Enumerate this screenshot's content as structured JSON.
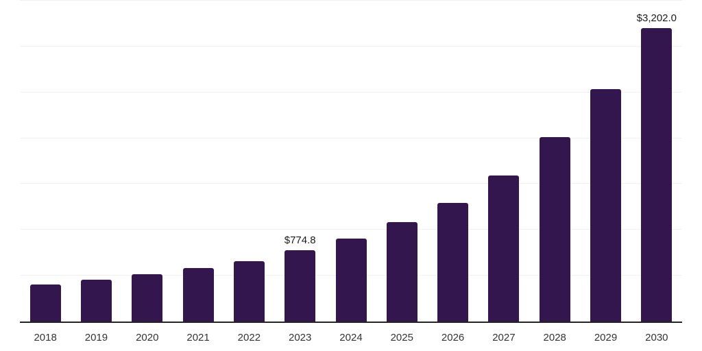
{
  "chart_data": {
    "type": "bar",
    "title": "",
    "xlabel": "",
    "ylabel": "",
    "categories": [
      "2018",
      "2019",
      "2020",
      "2021",
      "2022",
      "2023",
      "2024",
      "2025",
      "2026",
      "2027",
      "2028",
      "2029",
      "2030"
    ],
    "values": [
      405,
      456,
      517,
      580,
      660,
      774.8,
      905,
      1083,
      1292,
      1592,
      2010,
      2535,
      3202
    ],
    "labeled_values": [
      {
        "category": "2023",
        "text": "$774.8"
      },
      {
        "category": "2030",
        "text": "$3,202.0"
      }
    ],
    "ylim": [
      0,
      3500
    ],
    "grid_step": 500,
    "grid": "horizontal-only",
    "legend": "none",
    "y_tick_labels_visible": false,
    "colors": {
      "bar": "#34164E",
      "axis": "#242424",
      "gridline": "#F1F1F1",
      "x_tick_label": "#333333",
      "value_label": "#1A1A1A",
      "background": "#FFFFFF"
    }
  }
}
